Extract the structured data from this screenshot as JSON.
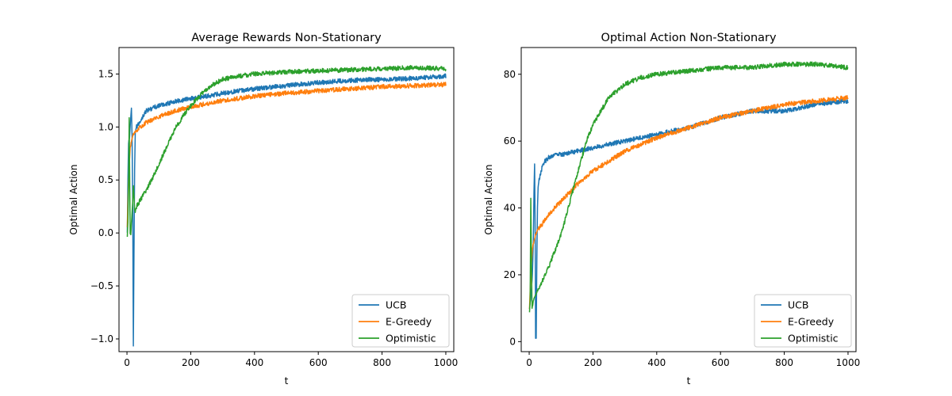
{
  "chart_data": [
    {
      "type": "line",
      "title": "Average Rewards Non-Stationary",
      "xlabel": "t",
      "ylabel": "Optimal Action",
      "xlim": [
        -25,
        1025
      ],
      "ylim": [
        -1.12,
        1.75
      ],
      "xticks": [
        0,
        200,
        400,
        600,
        800,
        1000
      ],
      "xtick_labels": [
        "0",
        "200",
        "400",
        "600",
        "800",
        "1000"
      ],
      "yticks": [
        -1.0,
        -0.5,
        0.0,
        0.5,
        1.0,
        1.5
      ],
      "ytick_labels": [
        "−1.0",
        "−0.5",
        "0.0",
        "0.5",
        "1.0",
        "1.5"
      ],
      "legend_position": "lower-right",
      "series": [
        {
          "name": "UCB",
          "color": "#1f77b4",
          "x": [
            1,
            3,
            5,
            8,
            10,
            12,
            14,
            16,
            18,
            20,
            22,
            24,
            26,
            30,
            35,
            40,
            50,
            60,
            80,
            100,
            150,
            200,
            250,
            300,
            400,
            500,
            600,
            700,
            800,
            900,
            1000
          ],
          "y": [
            0.0,
            0.5,
            0.85,
            0.9,
            1.0,
            1.1,
            1.17,
            0.9,
            0.3,
            -1.07,
            -0.2,
            0.6,
            0.95,
            1.0,
            1.02,
            1.05,
            1.1,
            1.15,
            1.18,
            1.2,
            1.24,
            1.27,
            1.29,
            1.32,
            1.36,
            1.39,
            1.42,
            1.44,
            1.45,
            1.46,
            1.48
          ]
        },
        {
          "name": "E-Greedy",
          "color": "#ff7f0e",
          "x": [
            1,
            5,
            10,
            15,
            20,
            30,
            40,
            60,
            80,
            100,
            150,
            200,
            250,
            300,
            400,
            500,
            600,
            700,
            800,
            900,
            1000
          ],
          "y": [
            0.05,
            0.5,
            0.8,
            0.88,
            0.93,
            0.97,
            1.0,
            1.04,
            1.07,
            1.1,
            1.15,
            1.19,
            1.22,
            1.25,
            1.29,
            1.32,
            1.34,
            1.36,
            1.38,
            1.39,
            1.4
          ]
        },
        {
          "name": "Optimistic",
          "color": "#2ca02c",
          "x": [
            1,
            3,
            5,
            7,
            8,
            10,
            12,
            14,
            16,
            18,
            20,
            22,
            24,
            26,
            30,
            40,
            60,
            80,
            100,
            120,
            150,
            180,
            200,
            230,
            260,
            300,
            350,
            400,
            500,
            600,
            700,
            800,
            900,
            1000
          ],
          "y": [
            -0.04,
            0.1,
            0.45,
            1.08,
            0.7,
            0.0,
            -0.02,
            0.1,
            0.2,
            0.3,
            0.45,
            0.35,
            0.22,
            0.2,
            0.25,
            0.3,
            0.4,
            0.52,
            0.65,
            0.78,
            0.98,
            1.12,
            1.2,
            1.3,
            1.38,
            1.45,
            1.48,
            1.5,
            1.52,
            1.53,
            1.54,
            1.55,
            1.56,
            1.55
          ]
        }
      ]
    },
    {
      "type": "line",
      "title": "Optimal Action Non-Stationary",
      "xlabel": "t",
      "ylabel": "Optimal Action",
      "xlim": [
        -25,
        1025
      ],
      "ylim": [
        -3,
        88
      ],
      "xticks": [
        0,
        200,
        400,
        600,
        800,
        1000
      ],
      "xtick_labels": [
        "0",
        "200",
        "400",
        "600",
        "800",
        "1000"
      ],
      "yticks": [
        0,
        20,
        40,
        60,
        80
      ],
      "ytick_labels": [
        "0",
        "20",
        "40",
        "60",
        "80"
      ],
      "legend_position": "lower-right",
      "series": [
        {
          "name": "UCB",
          "color": "#1f77b4",
          "x": [
            1,
            5,
            10,
            13,
            15,
            17,
            19,
            20,
            22,
            24,
            26,
            28,
            30,
            35,
            40,
            50,
            60,
            80,
            100,
            150,
            200,
            250,
            300,
            350,
            400,
            500,
            600,
            700,
            800,
            900,
            1000
          ],
          "y": [
            10,
            13,
            20,
            30,
            45,
            53,
            30,
            1,
            1,
            25,
            40,
            46,
            48,
            50,
            52,
            54,
            55,
            56,
            56,
            57,
            58,
            59,
            60,
            61,
            62,
            64,
            67,
            69,
            69,
            71,
            72
          ]
        },
        {
          "name": "E-Greedy",
          "color": "#ff7f0e",
          "x": [
            1,
            5,
            10,
            15,
            20,
            30,
            40,
            60,
            80,
            100,
            150,
            200,
            250,
            300,
            400,
            500,
            600,
            700,
            800,
            900,
            1000
          ],
          "y": [
            10,
            20,
            28,
            30,
            32,
            34,
            35,
            38,
            40,
            42,
            47,
            51,
            54,
            57,
            61,
            64,
            67,
            69,
            71,
            72,
            73
          ]
        },
        {
          "name": "Optimistic",
          "color": "#2ca02c",
          "x": [
            1,
            3,
            5,
            7,
            9,
            11,
            13,
            15,
            20,
            30,
            40,
            60,
            80,
            100,
            120,
            150,
            180,
            200,
            250,
            300,
            350,
            400,
            500,
            600,
            700,
            800,
            900,
            1000
          ],
          "y": [
            9,
            12,
            43,
            25,
            10,
            11,
            12,
            13,
            14,
            16,
            18,
            22,
            27,
            32,
            39,
            50,
            60,
            65,
            73,
            77,
            79,
            80,
            81,
            82,
            82,
            83,
            83,
            82
          ]
        }
      ]
    }
  ]
}
